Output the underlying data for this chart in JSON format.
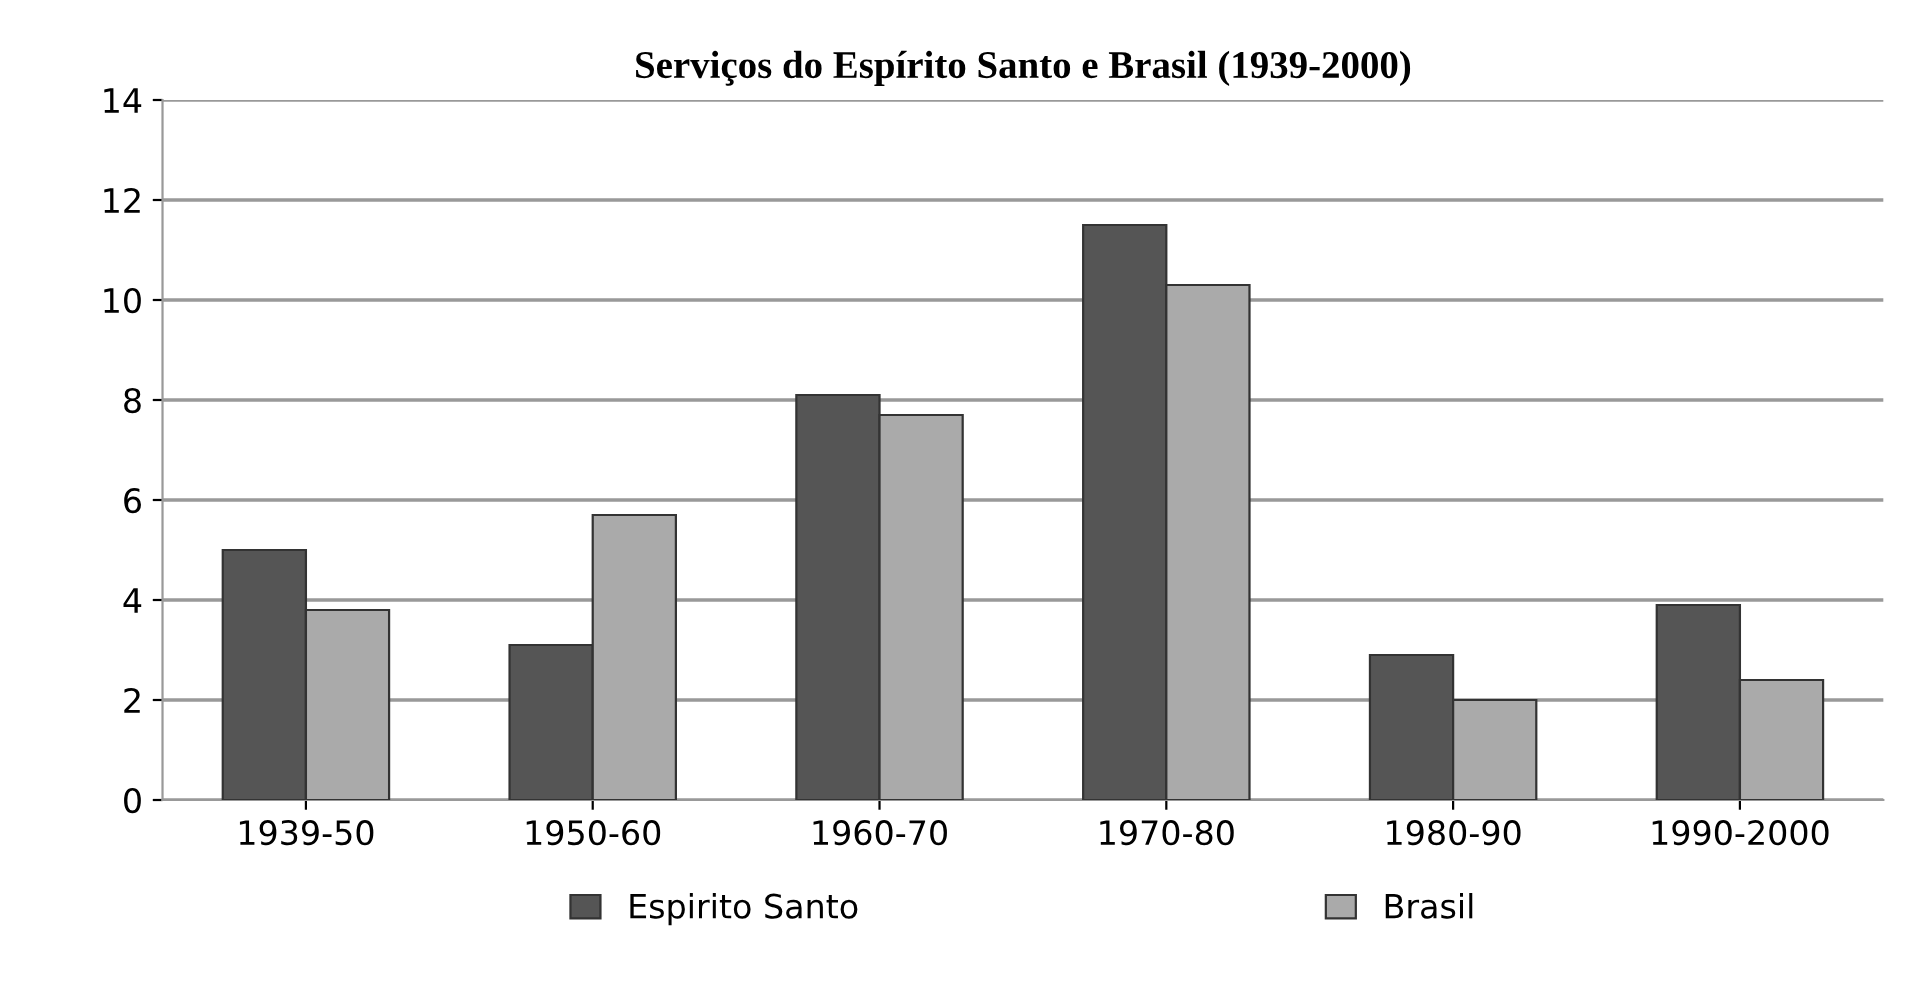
{
  "chart_data": {
    "type": "bar",
    "title": "Serviços do Espírito Santo e Brasil (1939-2000)",
    "categories": [
      "1939-50",
      "1950-60",
      "1960-70",
      "1970-80",
      "1980-90",
      "1990-2000"
    ],
    "series": [
      {
        "name": "Espirito Santo",
        "color": "#555555",
        "values": [
          5.0,
          3.1,
          8.1,
          11.5,
          2.9,
          3.9
        ]
      },
      {
        "name": "Brasil",
        "color": "#aaaaaa",
        "values": [
          3.8,
          5.7,
          7.7,
          10.3,
          2.0,
          2.4
        ]
      }
    ],
    "ylim": [
      0,
      14
    ],
    "yticks": [
      0,
      2,
      4,
      6,
      8,
      10,
      12,
      14
    ],
    "grid": "y",
    "legend": "bottom"
  }
}
